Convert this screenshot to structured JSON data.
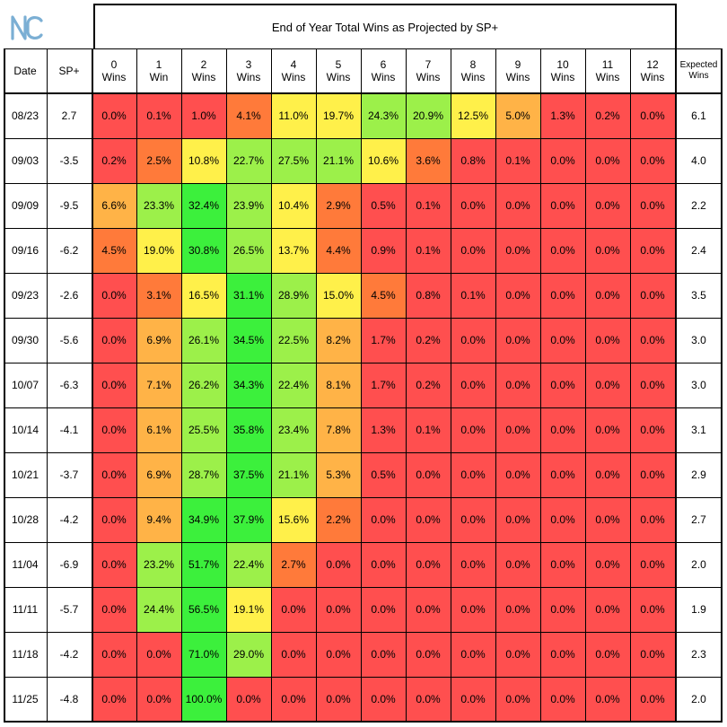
{
  "logo": {
    "icon": "unc-nc-logo-icon",
    "color": "#7bafd4"
  },
  "colors": {
    "scale": [
      "#ff4f4f",
      "#ff7a3a",
      "#ffb347",
      "#fff04a",
      "#9cf04a",
      "#3cf03c"
    ]
  },
  "headers": {
    "date": "Date",
    "sp": "SP+",
    "wins": [
      [
        "0",
        "Wins"
      ],
      [
        "1",
        "Win"
      ],
      [
        "2",
        "Wins"
      ],
      [
        "3",
        "Wins"
      ],
      [
        "4",
        "Wins"
      ],
      [
        "5",
        "Wins"
      ],
      [
        "6",
        "Wins"
      ],
      [
        "7",
        "Wins"
      ],
      [
        "8",
        "Wins"
      ],
      [
        "9",
        "Wins"
      ],
      [
        "10",
        "Wins"
      ],
      [
        "11",
        "Wins"
      ],
      [
        "12",
        "Wins"
      ]
    ],
    "expected": [
      "Expected",
      "Wins"
    ]
  },
  "chart_data": {
    "type": "table",
    "title": "End of Year Total Wins as Projected by SP+",
    "rows": [
      {
        "date": "08/23",
        "sp": "2.7",
        "values": [
          "0.0%",
          "0.1%",
          "1.0%",
          "4.1%",
          "11.0%",
          "19.7%",
          "24.3%",
          "20.9%",
          "12.5%",
          "5.0%",
          "1.3%",
          "0.2%",
          "0.0%"
        ],
        "expected": "6.1"
      },
      {
        "date": "09/03",
        "sp": "-3.5",
        "values": [
          "0.2%",
          "2.5%",
          "10.8%",
          "22.7%",
          "27.5%",
          "21.1%",
          "10.6%",
          "3.6%",
          "0.8%",
          "0.1%",
          "0.0%",
          "0.0%",
          "0.0%"
        ],
        "expected": "4.0"
      },
      {
        "date": "09/09",
        "sp": "-9.5",
        "values": [
          "6.6%",
          "23.3%",
          "32.4%",
          "23.9%",
          "10.4%",
          "2.9%",
          "0.5%",
          "0.1%",
          "0.0%",
          "0.0%",
          "0.0%",
          "0.0%",
          "0.0%"
        ],
        "expected": "2.2"
      },
      {
        "date": "09/16",
        "sp": "-6.2",
        "values": [
          "4.5%",
          "19.0%",
          "30.8%",
          "26.5%",
          "13.7%",
          "4.4%",
          "0.9%",
          "0.1%",
          "0.0%",
          "0.0%",
          "0.0%",
          "0.0%",
          "0.0%"
        ],
        "expected": "2.4"
      },
      {
        "date": "09/23",
        "sp": "-2.6",
        "values": [
          "0.0%",
          "3.1%",
          "16.5%",
          "31.1%",
          "28.9%",
          "15.0%",
          "4.5%",
          "0.8%",
          "0.1%",
          "0.0%",
          "0.0%",
          "0.0%",
          "0.0%"
        ],
        "expected": "3.5"
      },
      {
        "date": "09/30",
        "sp": "-5.6",
        "values": [
          "0.0%",
          "6.9%",
          "26.1%",
          "34.5%",
          "22.5%",
          "8.2%",
          "1.7%",
          "0.2%",
          "0.0%",
          "0.0%",
          "0.0%",
          "0.0%",
          "0.0%"
        ],
        "expected": "3.0"
      },
      {
        "date": "10/07",
        "sp": "-6.3",
        "values": [
          "0.0%",
          "7.1%",
          "26.2%",
          "34.3%",
          "22.4%",
          "8.1%",
          "1.7%",
          "0.2%",
          "0.0%",
          "0.0%",
          "0.0%",
          "0.0%",
          "0.0%"
        ],
        "expected": "3.0"
      },
      {
        "date": "10/14",
        "sp": "-4.1",
        "values": [
          "0.0%",
          "6.1%",
          "25.5%",
          "35.8%",
          "23.4%",
          "7.8%",
          "1.3%",
          "0.1%",
          "0.0%",
          "0.0%",
          "0.0%",
          "0.0%",
          "0.0%"
        ],
        "expected": "3.1"
      },
      {
        "date": "10/21",
        "sp": "-3.7",
        "values": [
          "0.0%",
          "6.9%",
          "28.7%",
          "37.5%",
          "21.1%",
          "5.3%",
          "0.5%",
          "0.0%",
          "0.0%",
          "0.0%",
          "0.0%",
          "0.0%",
          "0.0%"
        ],
        "expected": "2.9"
      },
      {
        "date": "10/28",
        "sp": "-4.2",
        "values": [
          "0.0%",
          "9.4%",
          "34.9%",
          "37.9%",
          "15.6%",
          "2.2%",
          "0.0%",
          "0.0%",
          "0.0%",
          "0.0%",
          "0.0%",
          "0.0%",
          "0.0%"
        ],
        "expected": "2.7"
      },
      {
        "date": "11/04",
        "sp": "-6.9",
        "values": [
          "0.0%",
          "23.2%",
          "51.7%",
          "22.4%",
          "2.7%",
          "0.0%",
          "0.0%",
          "0.0%",
          "0.0%",
          "0.0%",
          "0.0%",
          "0.0%",
          "0.0%"
        ],
        "expected": "2.0"
      },
      {
        "date": "11/11",
        "sp": "-5.7",
        "values": [
          "0.0%",
          "24.4%",
          "56.5%",
          "19.1%",
          "0.0%",
          "0.0%",
          "0.0%",
          "0.0%",
          "0.0%",
          "0.0%",
          "0.0%",
          "0.0%",
          "0.0%"
        ],
        "expected": "1.9"
      },
      {
        "date": "11/18",
        "sp": "-4.2",
        "values": [
          "0.0%",
          "0.0%",
          "71.0%",
          "29.0%",
          "0.0%",
          "0.0%",
          "0.0%",
          "0.0%",
          "0.0%",
          "0.0%",
          "0.0%",
          "0.0%",
          "0.0%"
        ],
        "expected": "2.3"
      },
      {
        "date": "11/25",
        "sp": "-4.8",
        "values": [
          "0.0%",
          "0.0%",
          "100.0%",
          "0.0%",
          "0.0%",
          "0.0%",
          "0.0%",
          "0.0%",
          "0.0%",
          "0.0%",
          "0.0%",
          "0.0%",
          "0.0%"
        ],
        "expected": "2.0"
      }
    ]
  }
}
